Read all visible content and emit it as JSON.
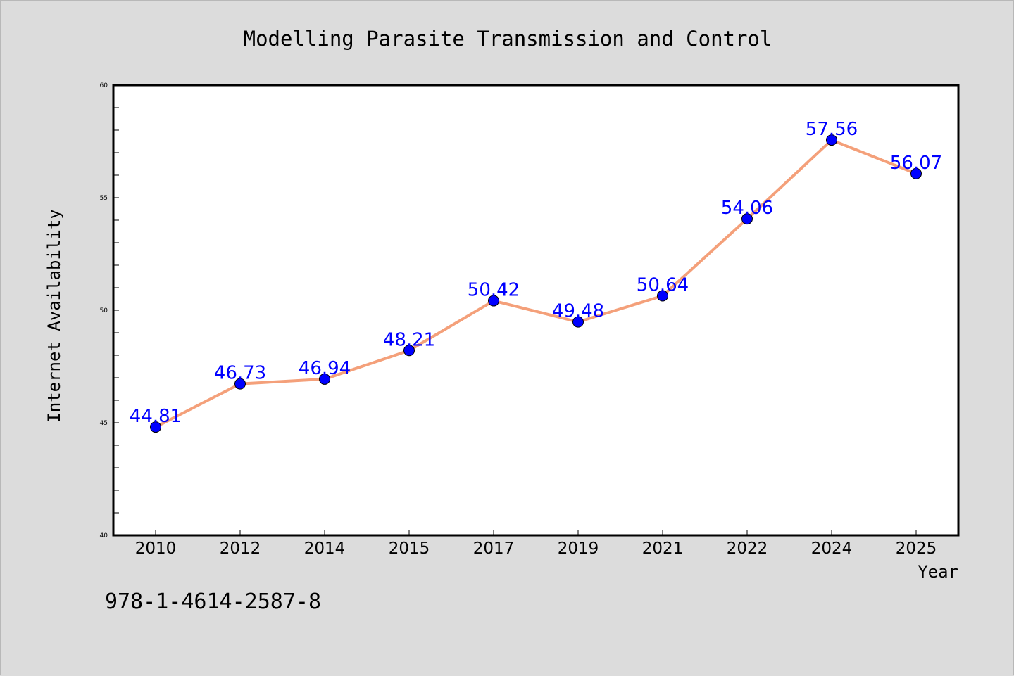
{
  "chart_data": {
    "type": "line",
    "title": "Modelling Parasite Transmission and Control",
    "xlabel": "Year",
    "ylabel": "Internet Availability",
    "categories": [
      "2010",
      "2012",
      "2014",
      "2015",
      "2017",
      "2019",
      "2021",
      "2022",
      "2024",
      "2025"
    ],
    "series": [
      {
        "values": [
          44.81,
          46.73,
          46.94,
          48.21,
          50.42,
          49.48,
          50.64,
          54.06,
          57.56,
          56.07
        ],
        "labels": [
          "44.81",
          "46.73",
          "46.94",
          "48.21",
          "50.42",
          "49.48",
          "50.64",
          "54.06",
          "57.56",
          "56.07"
        ],
        "line_color": "#f4a07a",
        "marker_color": "#0000ff",
        "label_color": "#0000ff"
      }
    ],
    "ylim": [
      40,
      60
    ],
    "yticks": [
      "40",
      "45",
      "50",
      "55",
      "60"
    ],
    "grid": false,
    "legend": "none"
  },
  "annotation": "978-1-4614-2587-8"
}
